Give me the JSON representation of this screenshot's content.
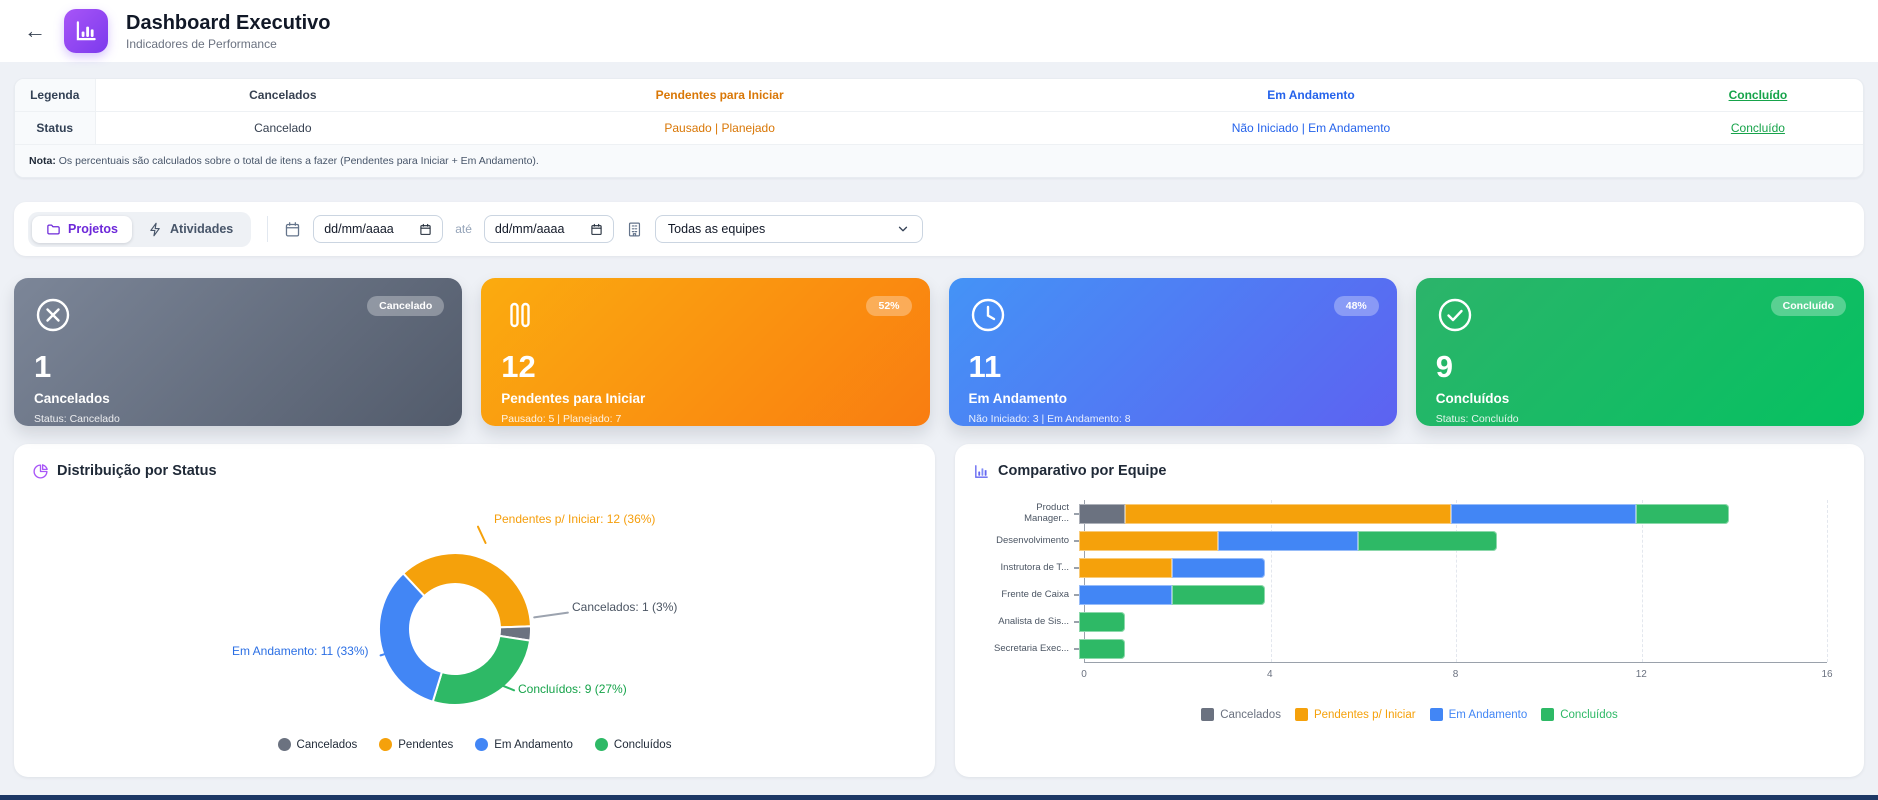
{
  "header": {
    "back_icon": "←",
    "title": "Dashboard Executivo",
    "subtitle": "Indicadores de Performance"
  },
  "legend_table": {
    "row_headers": [
      "Legenda",
      "Status"
    ],
    "columns": [
      {
        "legend": "Cancelados",
        "status": "Cancelado",
        "color": "#374151",
        "underline": false
      },
      {
        "legend": "Pendentes para Iniciar",
        "status": "Pausado | Planejado",
        "color": "#d97706",
        "underline": false
      },
      {
        "legend": "Em Andamento",
        "status": "Não Iniciado | Em Andamento",
        "color": "#2563eb",
        "underline": false
      },
      {
        "legend": "Concluído",
        "status": "Concluído",
        "color": "#16a34a",
        "underline": true
      }
    ],
    "note_label": "Nota:",
    "note_text": "Os percentuais são calculados sobre o total de itens a fazer (Pendentes para Iniciar + Em Andamento)."
  },
  "filters": {
    "view_tabs": [
      {
        "label": "Projetos",
        "icon": "folder-icon",
        "active": true
      },
      {
        "label": "Atividades",
        "icon": "bolt-icon",
        "active": false
      }
    ],
    "date_from": "dd/mm/aaaa",
    "date_until_label": "até",
    "date_to": "dd/mm/aaaa",
    "team_select_value": "Todas as equipes"
  },
  "kpi_cards": [
    {
      "icon": "x-circle-icon",
      "badge": "Cancelado",
      "value": "1",
      "label": "Cancelados",
      "sub": "Status: Cancelado",
      "gradient": [
        "#7c8698",
        "#525b6b"
      ]
    },
    {
      "icon": "pause-icon",
      "badge": "52%",
      "value": "12",
      "label": "Pendentes para Iniciar",
      "sub": "Pausado: 5 | Planejado: 7",
      "gradient": [
        "#fbab0f",
        "#f97d11"
      ]
    },
    {
      "icon": "clock-icon",
      "badge": "48%",
      "value": "11",
      "label": "Em Andamento",
      "sub": "Não Iniciado: 3 | Em Andamento: 8",
      "gradient": [
        "#4493f6",
        "#5d62f1"
      ]
    },
    {
      "icon": "check-circle-icon",
      "badge": "Concluído",
      "value": "9",
      "label": "Concluídos",
      "sub": "Status: Concluído",
      "gradient": [
        "#2cb46a",
        "#05c161"
      ]
    }
  ],
  "chart_data": [
    {
      "type": "pie",
      "subtype": "donut",
      "title": "Distribuição por Status",
      "labels": [
        "Pendentes p/ Iniciar",
        "Cancelados",
        "Concluídos",
        "Em Andamento"
      ],
      "values": [
        12,
        1,
        9,
        11
      ],
      "percents": [
        36,
        3,
        27,
        33
      ],
      "colors": [
        "#f5a10b",
        "#6b7280",
        "#2eb966",
        "#4286f5"
      ],
      "start_angle": -43,
      "donut_hole_ratio": 0.59,
      "callouts": [
        {
          "text": "Pendentes p/ Iniciar: 12 (36%)",
          "color": "#f59e0b"
        },
        {
          "text": "Cancelados: 1 (3%)",
          "color": "#4b5563"
        },
        {
          "text": "Em Andamento: 11 (33%)",
          "color": "#2b6fe4"
        },
        {
          "text": "Concluídos: 9 (27%)",
          "color": "#16a34a"
        }
      ],
      "legend": [
        {
          "label": "Cancelados",
          "color": "#6b7280"
        },
        {
          "label": "Pendentes",
          "color": "#f5a10b"
        },
        {
          "label": "Em Andamento",
          "color": "#4286f5"
        },
        {
          "label": "Concluídos",
          "color": "#2eb966"
        }
      ],
      "legend_position": "bottom"
    },
    {
      "type": "bar",
      "orientation": "horizontal-stacked",
      "title": "Comparativo por Equipe",
      "categories": [
        "Product Manager...",
        "Desenvolvimento",
        "Instrutora de T...",
        "Frente de Caixa",
        "Analista de Sis...",
        "Secretaria Exec..."
      ],
      "categories_display": [
        "Product\nManager...",
        "Desenvolvimento",
        "Instrutora de T...",
        "Frente de Caixa",
        "Analista de Sis...",
        "Secretaria Exec..."
      ],
      "series": [
        {
          "name": "Cancelados",
          "color": "#6b7280",
          "values": [
            1,
            0,
            0,
            0,
            0,
            0
          ]
        },
        {
          "name": "Pendentes p/ Iniciar",
          "color": "#f5a10b",
          "values": [
            7,
            3,
            2,
            0,
            0,
            0
          ]
        },
        {
          "name": "Em Andamento",
          "color": "#4286f5",
          "values": [
            4,
            3,
            2,
            2,
            0,
            0
          ]
        },
        {
          "name": "Concluídos",
          "color": "#2eb966",
          "values": [
            2,
            3,
            0,
            2,
            1,
            1
          ]
        }
      ],
      "xlim": [
        0,
        16
      ],
      "x_ticks": [
        0,
        4,
        8,
        12,
        16
      ],
      "grid": "dashed-vertical",
      "legend_position": "bottom"
    }
  ],
  "footer_bar_color": "#1d3865"
}
